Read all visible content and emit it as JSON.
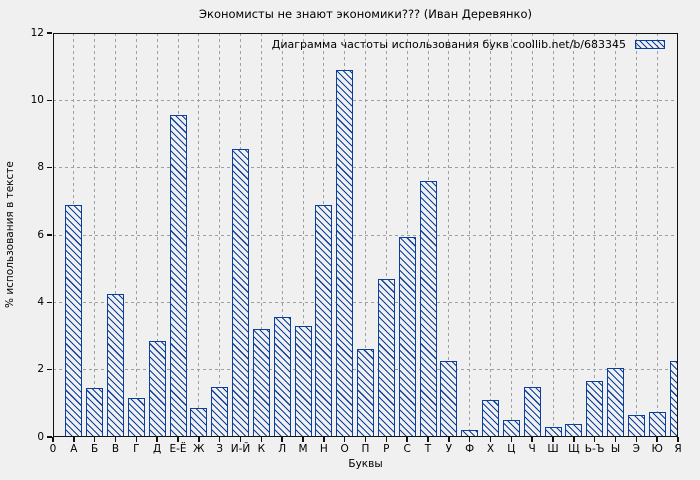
{
  "colors": {
    "background": "#f0f0f0",
    "bar": "#0a3f9d",
    "grid": "#9f9f9f",
    "axis": "#111111"
  },
  "chart_data": {
    "type": "bar",
    "title": "Экономисты не знают экономики??? (Иван Деревянко)",
    "legend": "Диаграмма частоты использования букв coollib.net/b/683345",
    "legend_position": "top-right-inside",
    "xlabel": "Буквы",
    "ylabel": "% использования в тексте",
    "origin_label": "0",
    "ylim": [
      0,
      12
    ],
    "yticks": [
      0,
      2,
      4,
      6,
      8,
      10,
      12
    ],
    "grid": true,
    "bar_style": "diagonal-hatch",
    "categories": [
      "А",
      "Б",
      "В",
      "Г",
      "Д",
      "Е-Ё",
      "Ж",
      "З",
      "И-Й",
      "К",
      "Л",
      "М",
      "Н",
      "О",
      "П",
      "Р",
      "С",
      "Т",
      "У",
      "Ф",
      "Х",
      "Ц",
      "Ч",
      "Ш",
      "Щ",
      "Ь-Ъ",
      "Ы",
      "Э",
      "Ю",
      "Я"
    ],
    "values": [
      6.9,
      1.45,
      4.25,
      1.15,
      2.85,
      9.55,
      0.85,
      1.5,
      8.55,
      3.2,
      3.55,
      3.3,
      6.9,
      10.9,
      2.6,
      4.7,
      5.95,
      7.6,
      2.25,
      0.2,
      1.1,
      0.5,
      1.5,
      0.3,
      0.4,
      1.65,
      2.05,
      0.65,
      0.75,
      2.25
    ]
  }
}
